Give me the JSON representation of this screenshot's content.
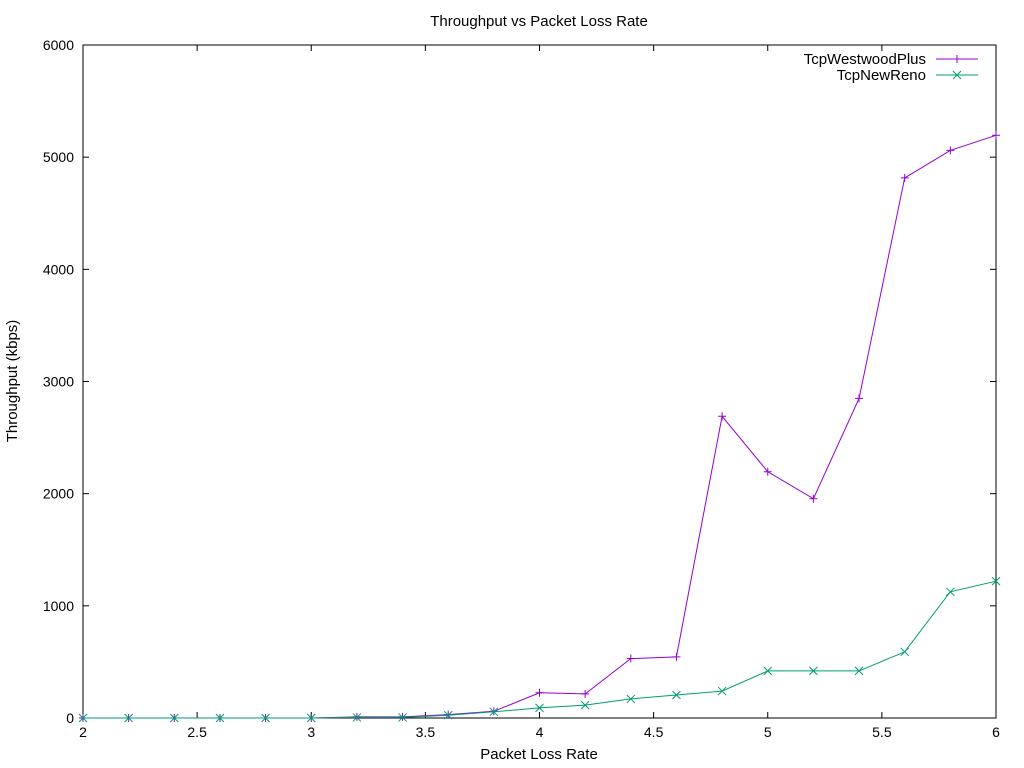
{
  "chart_data": {
    "type": "line",
    "title": "Throughput vs Packet Loss Rate",
    "xlabel": "Packet Loss Rate",
    "ylabel": "Throughput (kbps)",
    "xlim": [
      2,
      6
    ],
    "ylim": [
      0,
      6000
    ],
    "xticks": [
      2,
      2.5,
      3,
      3.5,
      4,
      4.5,
      5,
      5.5,
      6
    ],
    "xtick_labels": [
      "2",
      "2.5",
      "3",
      "3.5",
      "4",
      "4.5",
      "5",
      "5.5",
      "6"
    ],
    "yticks": [
      0,
      1000,
      2000,
      3000,
      4000,
      5000,
      6000
    ],
    "ytick_labels": [
      "0",
      "1000",
      "2000",
      "3000",
      "4000",
      "5000",
      "6000"
    ],
    "grid": false,
    "legend": "top-right",
    "x": [
      2,
      2.2,
      2.4,
      2.6,
      2.8,
      3,
      3.2,
      3.4,
      3.6,
      3.8,
      4,
      4.2,
      4.4,
      4.6,
      4.8,
      5,
      5.2,
      5.4,
      5.6,
      5.8,
      6
    ],
    "series": [
      {
        "name": "TcpWestwoodPlus",
        "color": "#9400d3",
        "marker": "plus",
        "values": [
          0,
          0,
          0,
          0,
          0,
          0,
          10,
          10,
          30,
          60,
          225,
          215,
          530,
          545,
          2690,
          2195,
          1955,
          2850,
          4815,
          5060,
          5195
        ]
      },
      {
        "name": "TcpNewReno",
        "color": "#009e73",
        "marker": "cross",
        "values": [
          0,
          0,
          0,
          0,
          0,
          0,
          5,
          5,
          25,
          55,
          90,
          115,
          170,
          205,
          240,
          420,
          420,
          420,
          590,
          1125,
          1220
        ]
      }
    ]
  }
}
